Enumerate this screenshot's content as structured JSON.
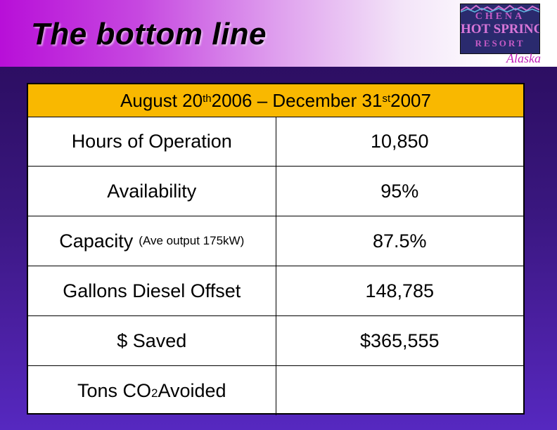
{
  "slide": {
    "title": "The bottom line"
  },
  "logo": {
    "line1": "CHENA",
    "line2": "HOT SPRINGS",
    "line3": "RESORT",
    "tagline": "Alaska"
  },
  "table": {
    "header": {
      "prefix": "August 20",
      "sup1": "th",
      "middle": " 2006 – December 31",
      "sup2": "st",
      "suffix": " 2007"
    },
    "rows": [
      {
        "label": "Hours of Operation",
        "value": "10,850"
      },
      {
        "label": "Availability",
        "value": "95%"
      },
      {
        "label": "Capacity",
        "note": "(Ave output 175kW)",
        "value": "87.5%"
      },
      {
        "label": "Gallons Diesel Offset",
        "value": "148,785"
      },
      {
        "label": "$ Saved",
        "value": "$365,555"
      },
      {
        "label_pre": "Tons CO",
        "label_sub": "2",
        "label_post": " Avoided",
        "value": ""
      }
    ]
  },
  "colors": {
    "header_fill": "#f9b800",
    "background": "#3a1780",
    "title_band_start": "#b80fd8"
  }
}
